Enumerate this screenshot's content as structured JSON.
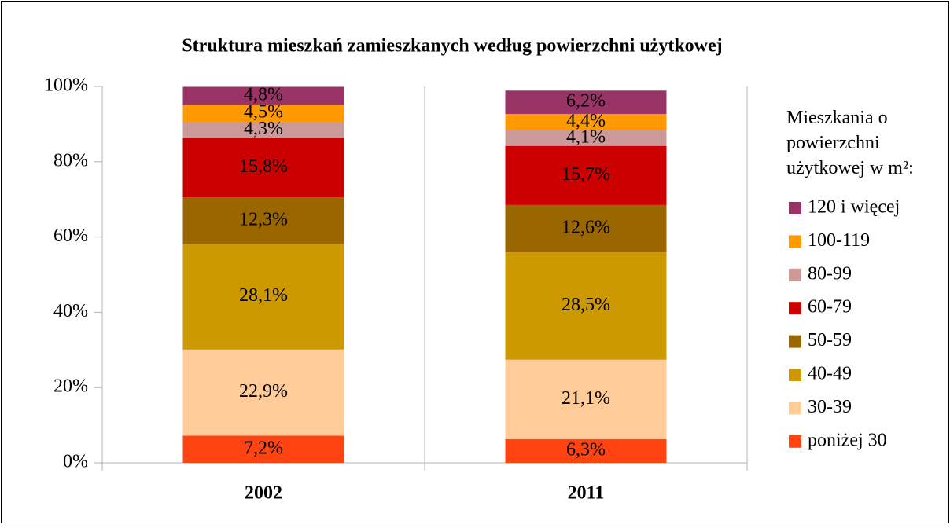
{
  "chart_data": {
    "type": "stacked_bar",
    "title": "Struktura mieszkań zamieszkanych według powierzchni użytkowej",
    "legend_title": "Mieszkania o powierzchni użytkowej w m²:",
    "legend": "right",
    "categories": [
      "2002",
      "2011"
    ],
    "ylim": [
      0,
      100
    ],
    "yticks": [
      {
        "value": 0,
        "label": "0%"
      },
      {
        "value": 20,
        "label": "20%"
      },
      {
        "value": 40,
        "label": "40%"
      },
      {
        "value": 60,
        "label": "60%"
      },
      {
        "value": 80,
        "label": "80%"
      },
      {
        "value": 100,
        "label": "100%"
      }
    ],
    "series": [
      {
        "name": "poniżej 30",
        "color": "#ff4411",
        "values": [
          7.2,
          6.3
        ],
        "value_labels": [
          "7,2%",
          "6,3%"
        ]
      },
      {
        "name": "30-39",
        "color": "#ffcc99",
        "values": [
          22.9,
          21.1
        ],
        "value_labels": [
          "22,9%",
          "21,1%"
        ]
      },
      {
        "name": "40-49",
        "color": "#cc9900",
        "values": [
          28.1,
          28.5
        ],
        "value_labels": [
          "28,1%",
          "28,5%"
        ]
      },
      {
        "name": "50-59",
        "color": "#996600",
        "values": [
          12.3,
          12.6
        ],
        "value_labels": [
          "12,3%",
          "12,6%"
        ]
      },
      {
        "name": "60-79",
        "color": "#cc0000",
        "values": [
          15.8,
          15.7
        ],
        "value_labels": [
          "15,8%",
          "15,7%"
        ]
      },
      {
        "name": "80-99",
        "color": "#cc9999",
        "values": [
          4.3,
          4.1
        ],
        "value_labels": [
          "4,3%",
          "4,1%"
        ]
      },
      {
        "name": "100-119",
        "color": "#ff9900",
        "values": [
          4.5,
          4.4
        ],
        "value_labels": [
          "4,5%",
          "4,4%"
        ]
      },
      {
        "name": "120 i więcej",
        "color": "#993366",
        "values": [
          4.8,
          6.2
        ],
        "value_labels": [
          "4,8%",
          "6,2%"
        ]
      }
    ]
  }
}
